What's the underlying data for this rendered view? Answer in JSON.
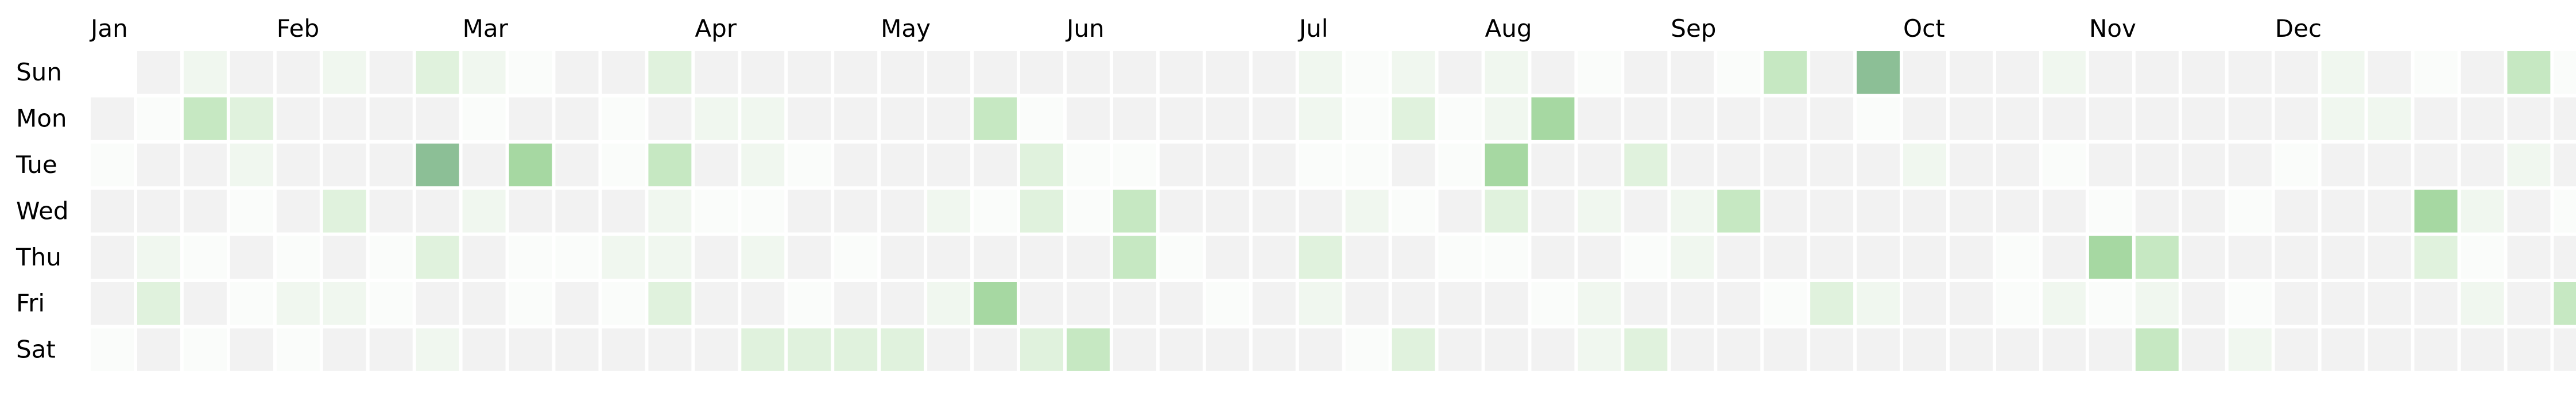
{
  "chart_data": {
    "type": "heatmap",
    "title": "",
    "xlabel": "",
    "ylabel": "",
    "grid": false,
    "legend": "none",
    "month_labels": [
      {
        "label": "Jan",
        "week": 0
      },
      {
        "label": "Feb",
        "week": 4
      },
      {
        "label": "Mar",
        "week": 8
      },
      {
        "label": "Apr",
        "week": 13
      },
      {
        "label": "May",
        "week": 17
      },
      {
        "label": "Jun",
        "week": 21
      },
      {
        "label": "Jul",
        "week": 26
      },
      {
        "label": "Aug",
        "week": 30
      },
      {
        "label": "Sep",
        "week": 34
      },
      {
        "label": "Oct",
        "week": 39
      },
      {
        "label": "Nov",
        "week": 43
      },
      {
        "label": "Dec",
        "week": 47
      }
    ],
    "day_labels": [
      "Sun",
      "Mon",
      "Tue",
      "Wed",
      "Thu",
      "Fri",
      "Sat"
    ],
    "colors": {
      "empty": "#f2f2f2",
      "scale": [
        "#fafcfa",
        "#f0f7ef",
        "#e0f2dd",
        "#c6e8c2",
        "#a6d8a2",
        "#8cbf96",
        "#7ea88b"
      ]
    },
    "values": [
      [
        null,
        0,
        2,
        0,
        0,
        2,
        0,
        3,
        2,
        1,
        0,
        0,
        3,
        0,
        0,
        0,
        0,
        0,
        0,
        0,
        0,
        0,
        0,
        0,
        0,
        0,
        2,
        1,
        2,
        0,
        2,
        0,
        1,
        0,
        0,
        1,
        4,
        0,
        6,
        0,
        0,
        0,
        2,
        0,
        0,
        0,
        0,
        0,
        2,
        0,
        1,
        0,
        4,
        1,
        0
      ],
      [
        0,
        1,
        4,
        3,
        0,
        0,
        0,
        0,
        1,
        0,
        0,
        1,
        0,
        2,
        2,
        0,
        0,
        0,
        0,
        4,
        1,
        0,
        0,
        0,
        0,
        0,
        2,
        1,
        3,
        1,
        2,
        5,
        0,
        0,
        0,
        0,
        0,
        0,
        1,
        0,
        0,
        0,
        0,
        0,
        0,
        0,
        0,
        0,
        2,
        2,
        0,
        0,
        0,
        0,
        0
      ],
      [
        1,
        0,
        0,
        2,
        0,
        0,
        0,
        6,
        0,
        5,
        0,
        1,
        4,
        0,
        2,
        1,
        0,
        0,
        0,
        0,
        3,
        1,
        1,
        0,
        0,
        0,
        1,
        1,
        0,
        1,
        5,
        0,
        0,
        3,
        0,
        0,
        0,
        0,
        0,
        2,
        0,
        0,
        1,
        0,
        0,
        0,
        0,
        1,
        0,
        0,
        0,
        0,
        2,
        0,
        0
      ],
      [
        0,
        0,
        0,
        1,
        0,
        3,
        0,
        0,
        2,
        0,
        0,
        0,
        2,
        1,
        1,
        0,
        0,
        0,
        2,
        1,
        3,
        1,
        4,
        0,
        0,
        0,
        0,
        2,
        1,
        0,
        3,
        0,
        2,
        0,
        2,
        4,
        0,
        0,
        0,
        0,
        0,
        0,
        0,
        1,
        0,
        0,
        1,
        0,
        0,
        0,
        5,
        2,
        0,
        1,
        null
      ],
      [
        0,
        2,
        1,
        0,
        1,
        0,
        1,
        3,
        0,
        1,
        1,
        2,
        2,
        0,
        2,
        0,
        1,
        0,
        0,
        0,
        0,
        0,
        4,
        1,
        0,
        0,
        3,
        0,
        0,
        1,
        1,
        0,
        0,
        1,
        2,
        0,
        0,
        0,
        0,
        0,
        0,
        1,
        0,
        5,
        4,
        0,
        0,
        0,
        0,
        0,
        3,
        1,
        0,
        0,
        null
      ],
      [
        0,
        3,
        0,
        1,
        2,
        2,
        1,
        0,
        0,
        1,
        0,
        1,
        3,
        0,
        0,
        1,
        0,
        0,
        2,
        5,
        0,
        0,
        0,
        0,
        1,
        0,
        2,
        0,
        0,
        0,
        0,
        1,
        2,
        0,
        0,
        0,
        1,
        3,
        2,
        0,
        0,
        1,
        2,
        1,
        2,
        0,
        1,
        0,
        0,
        0,
        0,
        2,
        0,
        4,
        4
      ],
      [
        1,
        0,
        1,
        0,
        1,
        0,
        0,
        2,
        0,
        0,
        0,
        0,
        0,
        0,
        3,
        3,
        3,
        3,
        0,
        0,
        3,
        4,
        0,
        0,
        0,
        0,
        0,
        1,
        3,
        0,
        0,
        0,
        2,
        3,
        0,
        0,
        0,
        0,
        0,
        0,
        0,
        0,
        0,
        0,
        4,
        0,
        2,
        0,
        0,
        0,
        0,
        0,
        0,
        0,
        null
      ]
    ]
  }
}
